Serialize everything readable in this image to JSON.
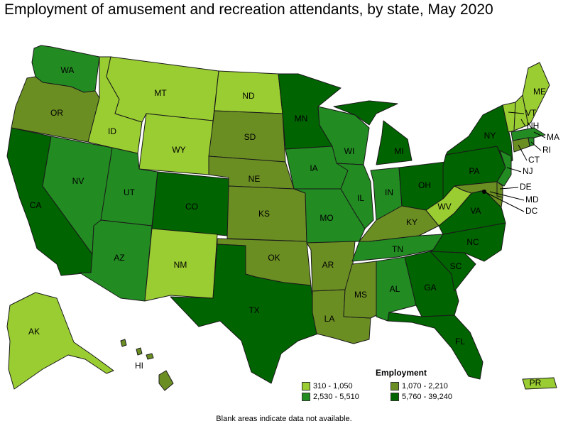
{
  "title": "Employment of amusement and recreation attendants, by state, May 2020",
  "legend": {
    "title": "Employment",
    "items": [
      {
        "label": "310 - 1,050",
        "color": "#9acd32"
      },
      {
        "label": "1,070 - 2,210",
        "color": "#6b8e23"
      },
      {
        "label": "2,530 - 5,510",
        "color": "#228b22"
      },
      {
        "label": "5,760 - 39,240",
        "color": "#006400"
      }
    ]
  },
  "footnote": "Blank areas indicate data not available.",
  "states": [
    {
      "abbr": "WA",
      "bin": 2
    },
    {
      "abbr": "OR",
      "bin": 1
    },
    {
      "abbr": "CA",
      "bin": 3
    },
    {
      "abbr": "NV",
      "bin": 2
    },
    {
      "abbr": "ID",
      "bin": 0
    },
    {
      "abbr": "MT",
      "bin": 0
    },
    {
      "abbr": "WY",
      "bin": 0
    },
    {
      "abbr": "UT",
      "bin": 2
    },
    {
      "abbr": "AZ",
      "bin": 2
    },
    {
      "abbr": "CO",
      "bin": 3
    },
    {
      "abbr": "NM",
      "bin": 0
    },
    {
      "abbr": "ND",
      "bin": 0
    },
    {
      "abbr": "SD",
      "bin": 1
    },
    {
      "abbr": "NE",
      "bin": 1
    },
    {
      "abbr": "KS",
      "bin": 1
    },
    {
      "abbr": "OK",
      "bin": 1
    },
    {
      "abbr": "TX",
      "bin": 3
    },
    {
      "abbr": "MN",
      "bin": 3
    },
    {
      "abbr": "IA",
      "bin": 2
    },
    {
      "abbr": "MO",
      "bin": 2
    },
    {
      "abbr": "AR",
      "bin": 1
    },
    {
      "abbr": "LA",
      "bin": 1
    },
    {
      "abbr": "WI",
      "bin": 2
    },
    {
      "abbr": "IL",
      "bin": 2
    },
    {
      "abbr": "MI",
      "bin": 3
    },
    {
      "abbr": "IN",
      "bin": 2
    },
    {
      "abbr": "OH",
      "bin": 3
    },
    {
      "abbr": "KY",
      "bin": 1
    },
    {
      "abbr": "TN",
      "bin": 2
    },
    {
      "abbr": "MS",
      "bin": 1
    },
    {
      "abbr": "AL",
      "bin": 2
    },
    {
      "abbr": "GA",
      "bin": 3
    },
    {
      "abbr": "FL",
      "bin": 3
    },
    {
      "abbr": "SC",
      "bin": 3
    },
    {
      "abbr": "NC",
      "bin": 3
    },
    {
      "abbr": "VA",
      "bin": 3
    },
    {
      "abbr": "WV",
      "bin": 0
    },
    {
      "abbr": "PA",
      "bin": 3
    },
    {
      "abbr": "NY",
      "bin": 3
    },
    {
      "abbr": "VT",
      "bin": 0
    },
    {
      "abbr": "NH",
      "bin": 0
    },
    {
      "abbr": "ME",
      "bin": 0
    },
    {
      "abbr": "MA",
      "bin": 2
    },
    {
      "abbr": "RI",
      "bin": 2
    },
    {
      "abbr": "CT",
      "bin": 1
    },
    {
      "abbr": "NJ",
      "bin": 2
    },
    {
      "abbr": "DE",
      "bin": 1
    },
    {
      "abbr": "MD",
      "bin": 1
    },
    {
      "abbr": "DC",
      "bin": 3
    },
    {
      "abbr": "AK",
      "bin": 0
    },
    {
      "abbr": "HI",
      "bin": 1
    },
    {
      "abbr": "PR",
      "bin": 0
    }
  ]
}
